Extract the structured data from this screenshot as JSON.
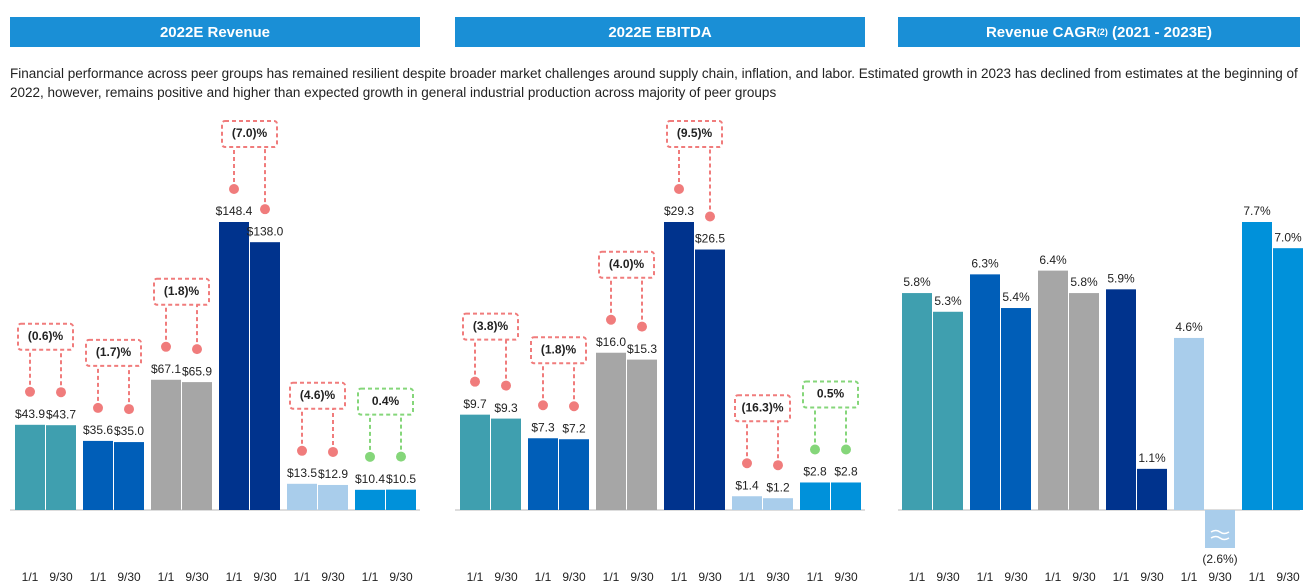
{
  "description": "Financial performance across peer groups has remained resilient despite broader market challenges around supply chain, inflation, and labor. Estimated growth in 2023 has declined from estimates at the beginning of 2022, however, remains positive and higher than expected growth in general industrial production across majority of peer groups",
  "chart_data": [
    {
      "type": "bar",
      "title": "2022E Revenue",
      "categories": [
        "1/1",
        "9/30"
      ],
      "series": [
        {
          "color": "#3f9faf",
          "values": [
            43.9,
            43.7
          ],
          "value_labels": [
            "$43.9",
            "$43.7"
          ],
          "change": "(0.6)%",
          "change_color": "#f07c7c"
        },
        {
          "color": "#005eb8",
          "values": [
            35.6,
            35.0
          ],
          "value_labels": [
            "$35.6",
            "$35.0"
          ],
          "change": "(1.7)%",
          "change_color": "#f07c7c"
        },
        {
          "color": "#a6a6a6",
          "values": [
            67.1,
            65.9
          ],
          "value_labels": [
            "$67.1",
            "$65.9"
          ],
          "change": "(1.8)%",
          "change_color": "#f07c7c"
        },
        {
          "color": "#00338d",
          "values": [
            148.4,
            138.0
          ],
          "value_labels": [
            "$148.4",
            "$138.0"
          ],
          "change": "(7.0)%",
          "change_color": "#f07c7c"
        },
        {
          "color": "#a9cdeb",
          "values": [
            13.5,
            12.9
          ],
          "value_labels": [
            "$13.5",
            "$12.9"
          ],
          "change": "(4.6)%",
          "change_color": "#f07c7c"
        },
        {
          "color": "#0091da",
          "values": [
            10.4,
            10.5
          ],
          "value_labels": [
            "$10.4",
            "$10.5"
          ],
          "change": "0.4%",
          "change_color": "#85d67a"
        }
      ]
    },
    {
      "type": "bar",
      "title": "2022E EBITDA",
      "categories": [
        "1/1",
        "9/30"
      ],
      "series": [
        {
          "color": "#3f9faf",
          "values": [
            9.7,
            9.3
          ],
          "value_labels": [
            "$9.7",
            "$9.3"
          ],
          "change": "(3.8)%",
          "change_color": "#f07c7c"
        },
        {
          "color": "#005eb8",
          "values": [
            7.3,
            7.2
          ],
          "value_labels": [
            "$7.3",
            "$7.2"
          ],
          "change": "(1.8)%",
          "change_color": "#f07c7c"
        },
        {
          "color": "#a6a6a6",
          "values": [
            16.0,
            15.3
          ],
          "value_labels": [
            "$16.0",
            "$15.3"
          ],
          "change": "(4.0)%",
          "change_color": "#f07c7c"
        },
        {
          "color": "#00338d",
          "values": [
            29.3,
            26.5
          ],
          "value_labels": [
            "$29.3",
            "$26.5"
          ],
          "change": "(9.5)%",
          "change_color": "#f07c7c"
        },
        {
          "color": "#a9cdeb",
          "values": [
            1.4,
            1.2
          ],
          "value_labels": [
            "$1.4",
            "$1.2"
          ],
          "change": "(16.3)%",
          "change_color": "#f07c7c"
        },
        {
          "color": "#0091da",
          "values": [
            2.8,
            2.8
          ],
          "value_labels": [
            "$2.8",
            "$2.8"
          ],
          "change": "0.5%",
          "change_color": "#85d67a"
        }
      ]
    },
    {
      "type": "bar",
      "title": "Revenue CAGR",
      "title_superscript": "(2)",
      "title_suffix": " (2021 - 2023E)",
      "categories": [
        "1/1",
        "9/30"
      ],
      "series": [
        {
          "color": "#3f9faf",
          "values": [
            5.8,
            5.3
          ],
          "value_labels": [
            "5.8%",
            "5.3%"
          ]
        },
        {
          "color": "#005eb8",
          "values": [
            6.3,
            5.4
          ],
          "value_labels": [
            "6.3%",
            "5.4%"
          ]
        },
        {
          "color": "#a6a6a6",
          "values": [
            6.4,
            5.8
          ],
          "value_labels": [
            "6.4%",
            "5.8%"
          ]
        },
        {
          "color": "#00338d",
          "values": [
            5.9,
            1.1
          ],
          "value_labels": [
            "5.9%",
            "1.1%"
          ]
        },
        {
          "color": "#a9cdeb",
          "values": [
            4.6,
            -2.6
          ],
          "value_labels": [
            "4.6%",
            "(2.6%)"
          ]
        },
        {
          "color": "#0091da",
          "values": [
            7.7,
            7.0
          ],
          "value_labels": [
            "7.7%",
            "7.0%"
          ]
        }
      ]
    }
  ]
}
